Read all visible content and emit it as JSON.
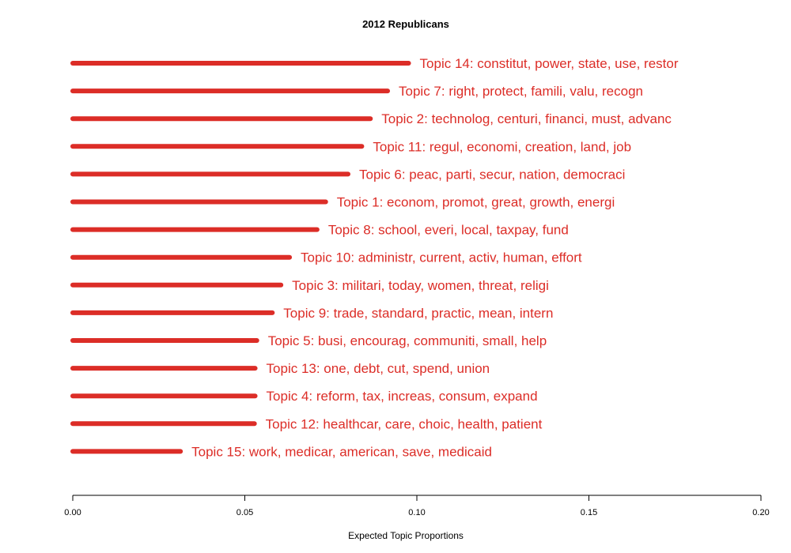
{
  "chart_data": {
    "type": "bar",
    "orientation": "horizontal",
    "title": "2012 Republicans",
    "xlabel": "Expected Topic Proportions",
    "ylabel": "",
    "xlim": [
      0,
      0.2
    ],
    "xticks": [
      "0.00",
      "0.05",
      "0.10",
      "0.15",
      "0.20"
    ],
    "grid": false,
    "color": "#dc2d27",
    "categories": [
      "Topic 14: constitut, power, state, use, restor",
      "Topic 7: right, protect, famili, valu, recogn",
      "Topic 2: technolog, centuri, financi, must, advanc",
      "Topic 11: regul, economi, creation, land, job",
      "Topic 6: peac, parti, secur, nation, democraci",
      "Topic 1: econom, promot, great, growth, energi",
      "Topic 8: school, everi, local, taxpay, fund",
      "Topic 10: administr, current, activ, human, effort",
      "Topic 3: militari, today, women, threat, religi",
      "Topic 9: trade, standard, practic, mean, intern",
      "Topic 5: busi, encourag, communiti, small, help",
      "Topic 13: one, debt, cut, spend, union",
      "Topic 4: reform, tax, increas, consum, expand",
      "Topic 12: healthcar, care, choic, health, patient",
      "Topic 15: work, medicar, american, save, medicaid"
    ],
    "values": [
      0.0976,
      0.0915,
      0.0865,
      0.084,
      0.08,
      0.0735,
      0.071,
      0.063,
      0.0605,
      0.058,
      0.0535,
      0.053,
      0.053,
      0.0528,
      0.0313
    ]
  }
}
